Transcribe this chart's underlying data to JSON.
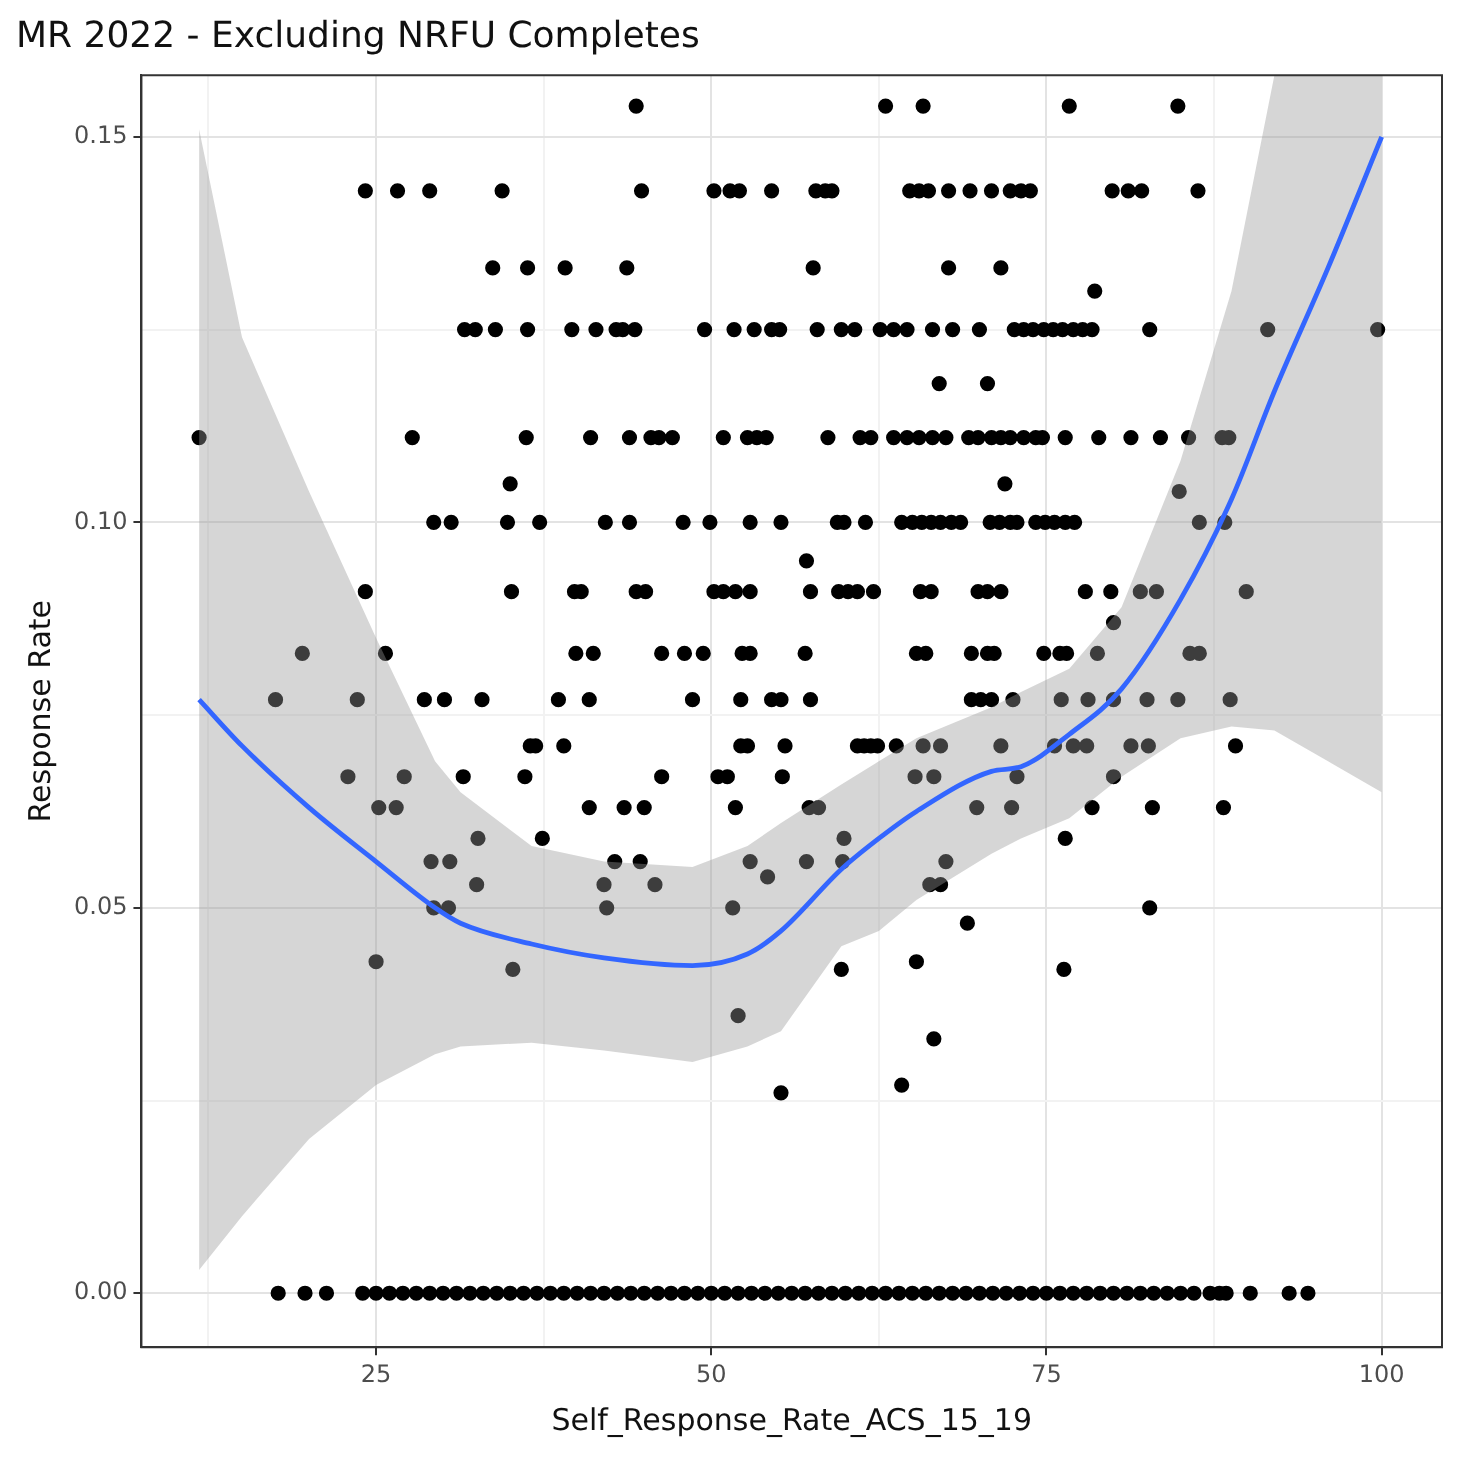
{
  "chart_data": {
    "type": "scatter",
    "title": "MR 2022 - Excluding NRFU Completes",
    "xlabel": "Self_Response_Rate_ACS_15_19",
    "ylabel": "Response Rate",
    "xlim": [
      7.5,
      104.5
    ],
    "ylim": [
      -0.007,
      0.158
    ],
    "xticks": [
      {
        "value": 12.5,
        "label": null
      },
      25,
      {
        "value": 37.5,
        "label": null
      },
      50,
      {
        "value": 62.5,
        "label": null
      },
      75,
      {
        "value": 87.5,
        "label": null
      },
      100
    ],
    "yticks": [
      {
        "value": 0,
        "label": "0.00"
      },
      {
        "value": 0.025,
        "label": null
      },
      {
        "value": 0.05,
        "label": "0.05"
      },
      {
        "value": 0.075,
        "label": null
      },
      {
        "value": 0.1,
        "label": "0.10"
      },
      {
        "value": 0.125,
        "label": null
      },
      {
        "value": 0.15,
        "label": "0.15"
      }
    ],
    "grid": true,
    "legend": false,
    "series": [
      {
        "type": "scatter",
        "color": "#000000",
        "marker": "circle",
        "x": [
          44.4,
          63.0,
          65.8,
          76.7,
          84.8,
          24.2,
          26.6,
          29.0,
          34.4,
          44.8,
          50.2,
          51.4,
          52.1,
          54.5,
          57.8,
          58.5,
          59.0,
          64.8,
          65.5,
          66.2,
          67.7,
          69.3,
          70.9,
          72.3,
          73.1,
          73.8,
          79.9,
          81.1,
          82.1,
          86.3,
          33.7,
          36.3,
          39.1,
          43.7,
          57.6,
          67.7,
          71.6,
          78.6,
          31.6,
          32.4,
          33.9,
          36.3,
          39.6,
          41.4,
          42.9,
          43.4,
          44.3,
          49.5,
          51.7,
          53.2,
          54.5,
          55.1,
          57.9,
          59.7,
          60.7,
          62.6,
          63.6,
          64.6,
          66.5,
          68.0,
          70.0,
          72.6,
          73.3,
          74.0,
          74.8,
          75.5,
          76.2,
          77.0,
          77.7,
          78.4,
          82.7,
          91.5,
          99.7,
          67.0,
          70.6,
          11.8,
          27.7,
          36.2,
          41.0,
          43.9,
          45.5,
          46.1,
          47.1,
          50.9,
          52.7,
          53.4,
          54.1,
          58.7,
          61.1,
          61.9,
          63.6,
          64.6,
          65.5,
          66.5,
          67.5,
          69.2,
          69.9,
          70.9,
          71.6,
          72.3,
          73.3,
          74.2,
          74.7,
          76.4,
          78.9,
          81.3,
          83.5,
          85.6,
          88.1,
          88.6,
          35.0,
          71.9,
          84.9,
          29.3,
          30.6,
          34.8,
          37.2,
          42.1,
          43.9,
          47.9,
          49.9,
          52.9,
          55.2,
          59.4,
          59.9,
          61.5,
          64.2,
          65.0,
          65.7,
          66.4,
          67.1,
          67.9,
          68.6,
          70.8,
          71.5,
          72.3,
          72.8,
          74.2,
          74.9,
          75.6,
          76.4,
          77.1,
          86.4,
          88.3,
          57.1,
          24.2,
          35.1,
          39.8,
          40.3,
          44.4,
          45.1,
          50.2,
          50.9,
          51.8,
          52.9,
          57.4,
          59.5,
          60.2,
          60.9,
          62.1,
          65.6,
          66.4,
          69.9,
          70.6,
          71.6,
          77.9,
          79.8,
          82.0,
          83.2,
          89.9,
          80.0,
          19.5,
          25.7,
          39.9,
          41.2,
          46.3,
          48.0,
          49.4,
          52.3,
          52.9,
          57.0,
          65.3,
          66.0,
          69.4,
          70.6,
          71.1,
          74.8,
          76.0,
          76.5,
          78.8,
          85.7,
          86.4,
          17.5,
          23.6,
          28.6,
          30.1,
          32.9,
          38.6,
          40.9,
          48.6,
          52.2,
          54.5,
          55.2,
          57.4,
          69.4,
          70.1,
          70.9,
          72.5,
          76.1,
          78.1,
          80.0,
          82.5,
          84.8,
          88.7,
          36.5,
          36.9,
          39.0,
          52.2,
          52.7,
          55.5,
          60.9,
          61.4,
          61.9,
          62.4,
          63.8,
          65.8,
          67.1,
          71.6,
          75.6,
          77.0,
          78.0,
          81.3,
          82.6,
          89.1,
          22.9,
          27.1,
          31.5,
          36.1,
          46.3,
          50.5,
          51.2,
          55.3,
          65.2,
          66.6,
          72.8,
          80.0,
          25.2,
          26.5,
          40.9,
          43.5,
          45.0,
          51.8,
          57.3,
          58.0,
          69.8,
          72.4,
          78.4,
          82.9,
          88.2,
          32.6,
          37.4,
          59.9,
          76.4,
          29.1,
          30.5,
          42.8,
          44.7,
          52.9,
          57.1,
          59.8,
          67.5,
          54.2,
          32.5,
          42.0,
          45.8,
          66.3,
          67.1,
          29.3,
          30.4,
          42.2,
          51.6,
          82.7,
          69.1,
          25.0,
          65.3,
          35.2,
          59.7,
          76.3,
          52.0,
          66.6,
          64.2,
          55.2,
          17.7,
          19.7,
          21.3,
          24.0,
          25,
          26,
          27,
          28,
          29,
          30,
          31,
          32,
          33,
          34,
          35,
          36,
          37,
          38,
          39,
          40,
          41,
          42,
          43,
          44,
          45,
          46,
          47,
          48,
          49,
          50,
          51,
          52,
          53,
          54,
          55,
          56,
          57,
          58,
          59,
          60,
          61,
          62,
          63,
          64,
          65,
          66,
          67,
          68,
          69,
          70,
          71,
          72,
          73,
          74,
          75,
          76,
          77,
          78,
          79,
          80,
          81,
          82,
          83,
          84,
          85,
          86.0,
          87.2,
          87.9,
          88.4,
          90.2,
          93.1,
          94.5
        ],
        "values": [
          0.154,
          0.154,
          0.154,
          0.154,
          0.154,
          0.143,
          0.143,
          0.143,
          0.143,
          0.143,
          0.143,
          0.143,
          0.143,
          0.143,
          0.143,
          0.143,
          0.143,
          0.143,
          0.143,
          0.143,
          0.143,
          0.143,
          0.143,
          0.143,
          0.143,
          0.143,
          0.143,
          0.143,
          0.143,
          0.143,
          0.133,
          0.133,
          0.133,
          0.133,
          0.133,
          0.133,
          0.133,
          0.13,
          0.125,
          0.125,
          0.125,
          0.125,
          0.125,
          0.125,
          0.125,
          0.125,
          0.125,
          0.125,
          0.125,
          0.125,
          0.125,
          0.125,
          0.125,
          0.125,
          0.125,
          0.125,
          0.125,
          0.125,
          0.125,
          0.125,
          0.125,
          0.125,
          0.125,
          0.125,
          0.125,
          0.125,
          0.125,
          0.125,
          0.125,
          0.125,
          0.125,
          0.125,
          0.125,
          0.118,
          0.118,
          0.111,
          0.111,
          0.111,
          0.111,
          0.111,
          0.111,
          0.111,
          0.111,
          0.111,
          0.111,
          0.111,
          0.111,
          0.111,
          0.111,
          0.111,
          0.111,
          0.111,
          0.111,
          0.111,
          0.111,
          0.111,
          0.111,
          0.111,
          0.111,
          0.111,
          0.111,
          0.111,
          0.111,
          0.111,
          0.111,
          0.111,
          0.111,
          0.111,
          0.111,
          0.111,
          0.105,
          0.105,
          0.104,
          0.1,
          0.1,
          0.1,
          0.1,
          0.1,
          0.1,
          0.1,
          0.1,
          0.1,
          0.1,
          0.1,
          0.1,
          0.1,
          0.1,
          0.1,
          0.1,
          0.1,
          0.1,
          0.1,
          0.1,
          0.1,
          0.1,
          0.1,
          0.1,
          0.1,
          0.1,
          0.1,
          0.1,
          0.1,
          0.1,
          0.1,
          0.095,
          0.091,
          0.091,
          0.091,
          0.091,
          0.091,
          0.091,
          0.091,
          0.091,
          0.091,
          0.091,
          0.091,
          0.091,
          0.091,
          0.091,
          0.091,
          0.091,
          0.091,
          0.091,
          0.091,
          0.091,
          0.091,
          0.091,
          0.091,
          0.091,
          0.091,
          0.087,
          0.083,
          0.083,
          0.083,
          0.083,
          0.083,
          0.083,
          0.083,
          0.083,
          0.083,
          0.083,
          0.083,
          0.083,
          0.083,
          0.083,
          0.083,
          0.083,
          0.083,
          0.083,
          0.083,
          0.083,
          0.083,
          0.077,
          0.077,
          0.077,
          0.077,
          0.077,
          0.077,
          0.077,
          0.077,
          0.077,
          0.077,
          0.077,
          0.077,
          0.077,
          0.077,
          0.077,
          0.077,
          0.077,
          0.077,
          0.077,
          0.077,
          0.077,
          0.077,
          0.071,
          0.071,
          0.071,
          0.071,
          0.071,
          0.071,
          0.071,
          0.071,
          0.071,
          0.071,
          0.071,
          0.071,
          0.071,
          0.071,
          0.071,
          0.071,
          0.071,
          0.071,
          0.071,
          0.071,
          0.067,
          0.067,
          0.067,
          0.067,
          0.067,
          0.067,
          0.067,
          0.067,
          0.067,
          0.067,
          0.067,
          0.067,
          0.063,
          0.063,
          0.063,
          0.063,
          0.063,
          0.063,
          0.063,
          0.063,
          0.063,
          0.063,
          0.063,
          0.063,
          0.063,
          0.059,
          0.059,
          0.059,
          0.059,
          0.056,
          0.056,
          0.056,
          0.056,
          0.056,
          0.056,
          0.056,
          0.056,
          0.054,
          0.053,
          0.053,
          0.053,
          0.053,
          0.053,
          0.05,
          0.05,
          0.05,
          0.05,
          0.05,
          0.048,
          0.043,
          0.043,
          0.042,
          0.042,
          0.042,
          0.036,
          0.033,
          0.027,
          0.026,
          0,
          0,
          0,
          0,
          0,
          0,
          0,
          0,
          0,
          0,
          0,
          0,
          0,
          0,
          0,
          0,
          0,
          0,
          0,
          0,
          0,
          0,
          0,
          0,
          0,
          0,
          0,
          0,
          0,
          0,
          0,
          0,
          0,
          0,
          0,
          0,
          0,
          0,
          0,
          0,
          0,
          0,
          0,
          0,
          0,
          0,
          0,
          0,
          0,
          0,
          0,
          0,
          0,
          0,
          0,
          0,
          0,
          0,
          0,
          0,
          0,
          0,
          0,
          0,
          0,
          0,
          0,
          0,
          0,
          0,
          0,
          0
        ]
      },
      {
        "type": "line",
        "color": "#3366ff",
        "x": [
          11.8,
          15,
          20,
          25,
          29.4,
          31.3,
          36.6,
          42,
          48.6,
          52.7,
          55.2,
          59.7,
          62.5,
          65.3,
          70.9,
          73.1,
          76.7,
          80.6,
          85,
          88.8,
          92,
          96,
          100
        ],
        "values": [
          0.077,
          0.071,
          0.063,
          0.056,
          0.05,
          0.048,
          0.0453,
          0.0435,
          0.0425,
          0.044,
          0.047,
          0.055,
          0.059,
          0.0625,
          0.0677,
          0.0683,
          0.0725,
          0.0784,
          0.09,
          0.103,
          0.117,
          0.133,
          0.15
        ],
        "lower": [
          0.003,
          0.01,
          0.02,
          0.027,
          0.031,
          0.032,
          0.0325,
          0.0315,
          0.03,
          0.032,
          0.034,
          0.045,
          0.047,
          0.051,
          0.057,
          0.059,
          0.0616,
          0.067,
          0.072,
          0.0735,
          0.073,
          0.069,
          0.065
        ],
        "upper": [
          0.151,
          0.124,
          0.104,
          0.085,
          0.069,
          0.065,
          0.058,
          0.056,
          0.0553,
          0.058,
          0.061,
          0.066,
          0.069,
          0.072,
          0.076,
          0.078,
          0.081,
          0.089,
          0.108,
          0.13,
          0.158,
          0.158,
          0.158
        ]
      }
    ]
  }
}
